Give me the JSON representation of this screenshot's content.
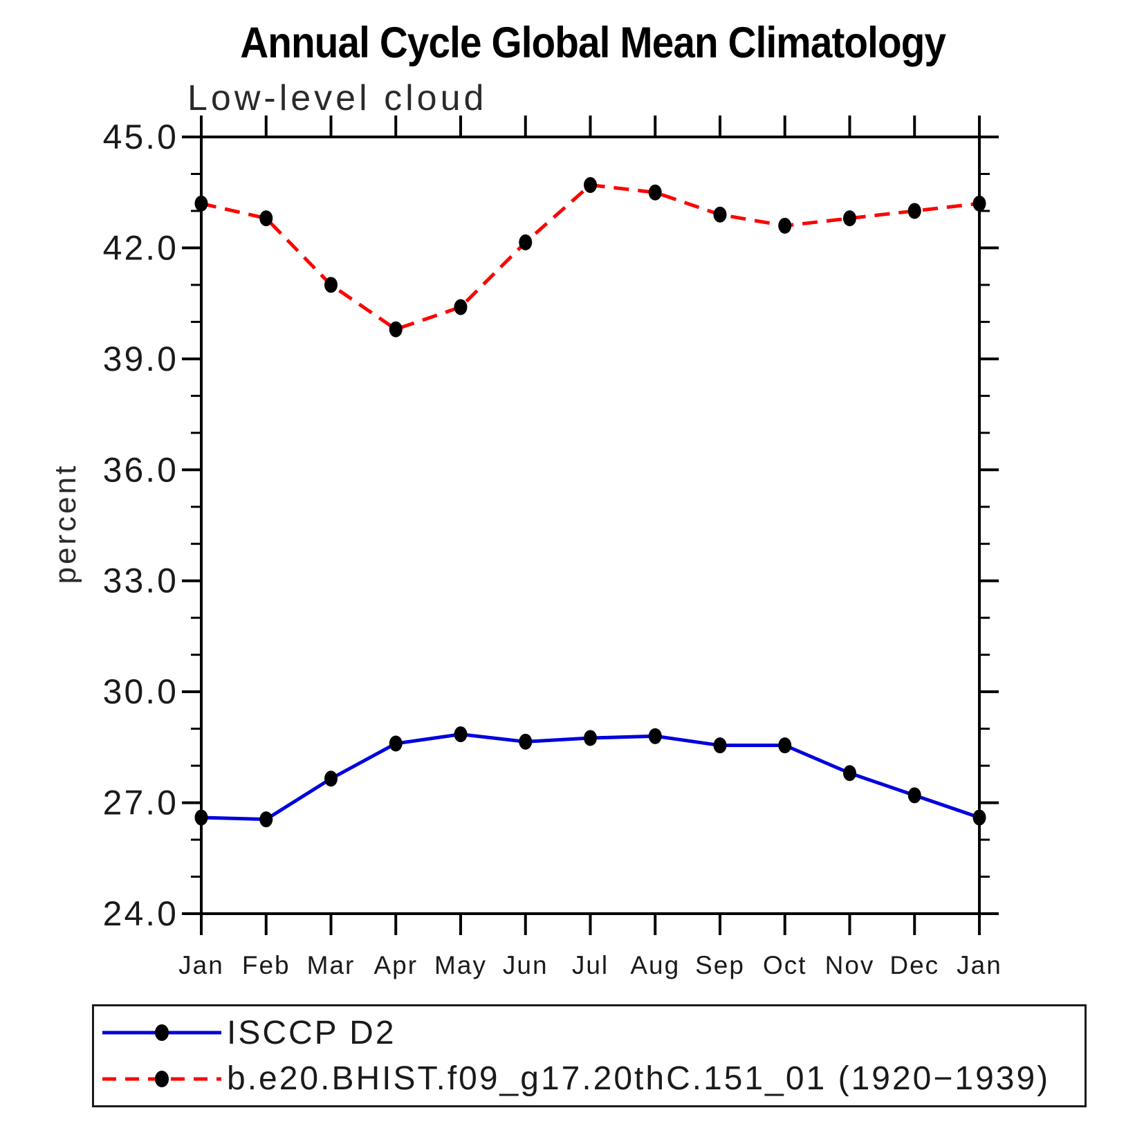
{
  "page": {
    "background": "#ffffff"
  },
  "chart_data": {
    "type": "line",
    "title": "Annual Cycle Global Mean Climatology",
    "subtitle": "Low-level cloud",
    "ylabel": "percent",
    "xlabel": "",
    "categories": [
      "Jan",
      "Feb",
      "Mar",
      "Apr",
      "May",
      "Jun",
      "Jul",
      "Aug",
      "Sep",
      "Oct",
      "Nov",
      "Dec",
      "Jan"
    ],
    "ylim": [
      24.0,
      45.0
    ],
    "ytick_values": [
      45,
      42,
      39,
      36,
      33,
      30,
      27,
      24
    ],
    "ytick_labels": [
      "45.0",
      "42.0",
      "39.0",
      "36.0",
      "33.0",
      "30.0",
      "27.0",
      "24.0"
    ],
    "minor_tick_interval": 1.0,
    "grid": false,
    "legend_position": "bottom-box",
    "axis_color": "#000000",
    "marker": {
      "shape": "circle",
      "color": "#000000"
    },
    "series": [
      {
        "name": "ISCCP D2",
        "color": "#0000dd",
        "line_style": "solid",
        "values": [
          26.6,
          26.55,
          27.65,
          28.6,
          28.85,
          28.65,
          28.75,
          28.8,
          28.55,
          28.55,
          27.8,
          27.2,
          26.6
        ]
      },
      {
        "name": "b.e20.BHIST.f09_g17.20thC.151_01 (1920−1939)",
        "color": "#ff0000",
        "line_style": "dashed",
        "values": [
          43.2,
          42.8,
          41.0,
          39.8,
          40.4,
          42.15,
          43.7,
          43.5,
          42.9,
          42.6,
          42.8,
          43.0,
          43.2
        ]
      }
    ]
  }
}
